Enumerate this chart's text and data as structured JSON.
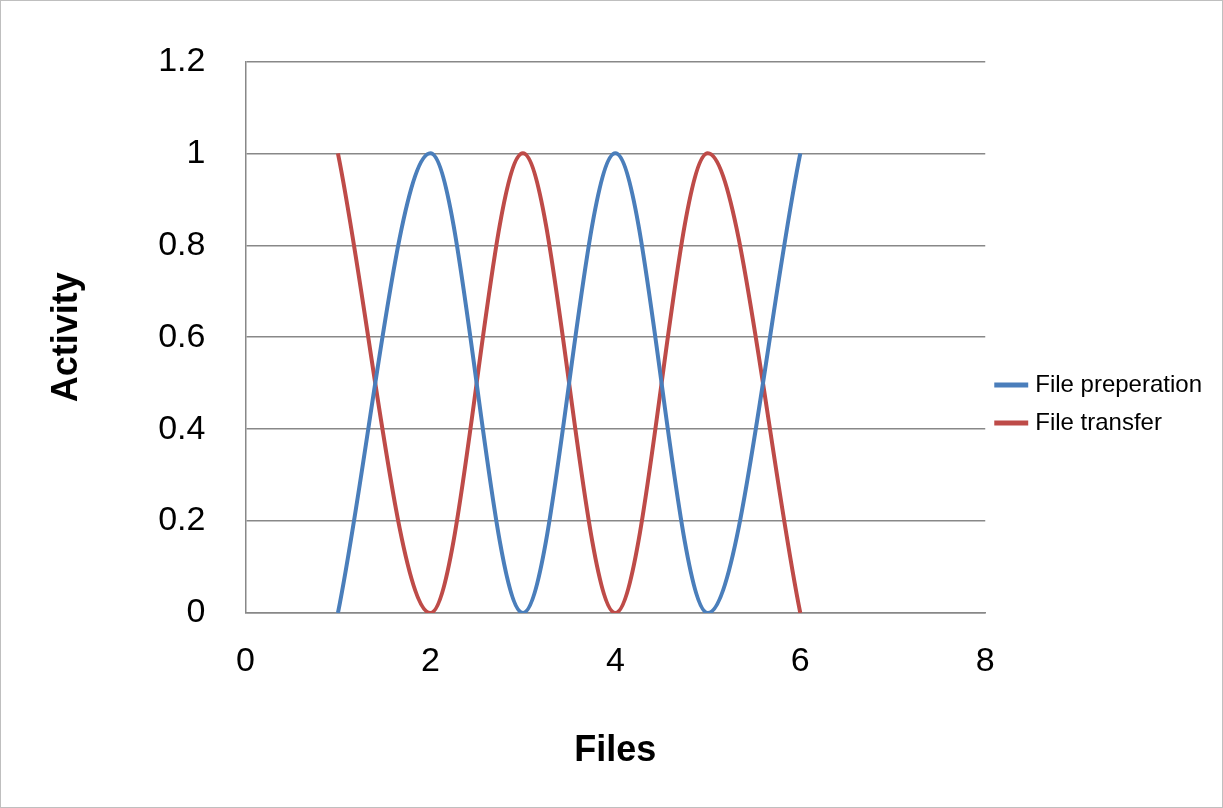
{
  "chart_data": {
    "type": "line",
    "xlabel": "Files",
    "ylabel": "Activity",
    "x": [
      1,
      2,
      3,
      4,
      5,
      6
    ],
    "series": [
      {
        "name": "File preperation",
        "color": "#4a7ebb",
        "values": [
          0,
          1,
          0,
          1,
          0,
          1
        ]
      },
      {
        "name": "File transfer",
        "color": "#be4b48",
        "values": [
          1,
          0,
          1,
          0,
          1,
          0
        ]
      }
    ],
    "xlim": [
      0,
      8
    ],
    "xticks": [
      0,
      2,
      4,
      6,
      8
    ],
    "ylim": [
      0,
      1.2
    ],
    "yticks": [
      0,
      0.2,
      0.4,
      0.6,
      0.8,
      1,
      1.2
    ],
    "grid": "y",
    "legend": "right",
    "marker": "none",
    "line_style": "solid"
  }
}
